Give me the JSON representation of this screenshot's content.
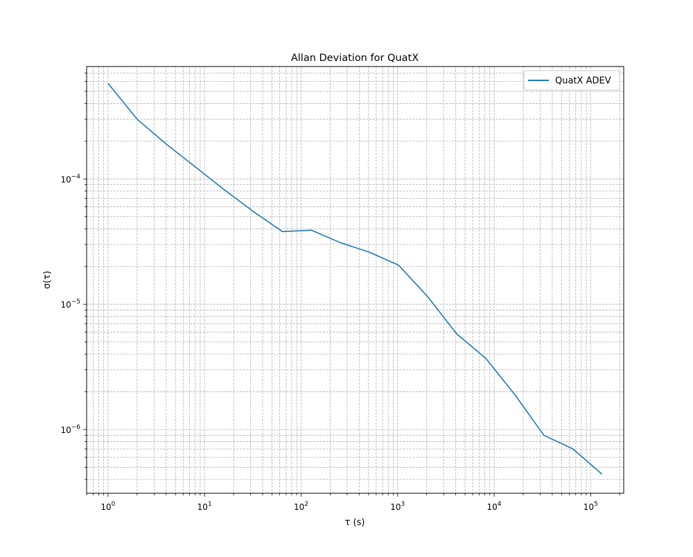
{
  "chart_data": {
    "type": "line",
    "title": "Allan Deviation for QuatX",
    "xlabel": "τ (s)",
    "ylabel": "σ(τ)",
    "xscale": "log",
    "yscale": "log",
    "xlim": [
      0.6,
      220000
    ],
    "ylim": [
      3.1e-07,
      0.00079
    ],
    "grid": "both major and minor, dashed",
    "legend_position": "upper right",
    "x_ticks": [
      {
        "value": 1,
        "base": "10",
        "exp": "0"
      },
      {
        "value": 10,
        "base": "10",
        "exp": "1"
      },
      {
        "value": 100,
        "base": "10",
        "exp": "2"
      },
      {
        "value": 1000,
        "base": "10",
        "exp": "3"
      },
      {
        "value": 10000,
        "base": "10",
        "exp": "4"
      },
      {
        "value": 100000,
        "base": "10",
        "exp": "5"
      }
    ],
    "y_ticks": [
      {
        "value": 0.0001,
        "base": "10",
        "exp": "−4"
      },
      {
        "value": 1e-05,
        "base": "10",
        "exp": "−5"
      },
      {
        "value": 1e-06,
        "base": "10",
        "exp": "−6"
      }
    ],
    "series": [
      {
        "name": "QuatX ADEV",
        "color": "#1f77b4",
        "x": [
          1,
          2,
          4,
          8,
          16,
          32,
          64,
          128,
          256,
          512,
          1024,
          2048,
          4096,
          8192,
          16384,
          32768,
          65536,
          131072
        ],
        "y": [
          0.00058,
          0.0003,
          0.00019,
          0.000125,
          8.2e-05,
          5.5e-05,
          3.8e-05,
          3.9e-05,
          3.1e-05,
          2.6e-05,
          2.05e-05,
          1.15e-05,
          5.8e-06,
          3.7e-06,
          1.9e-06,
          9e-07,
          7e-07,
          4.4e-07
        ]
      }
    ]
  }
}
